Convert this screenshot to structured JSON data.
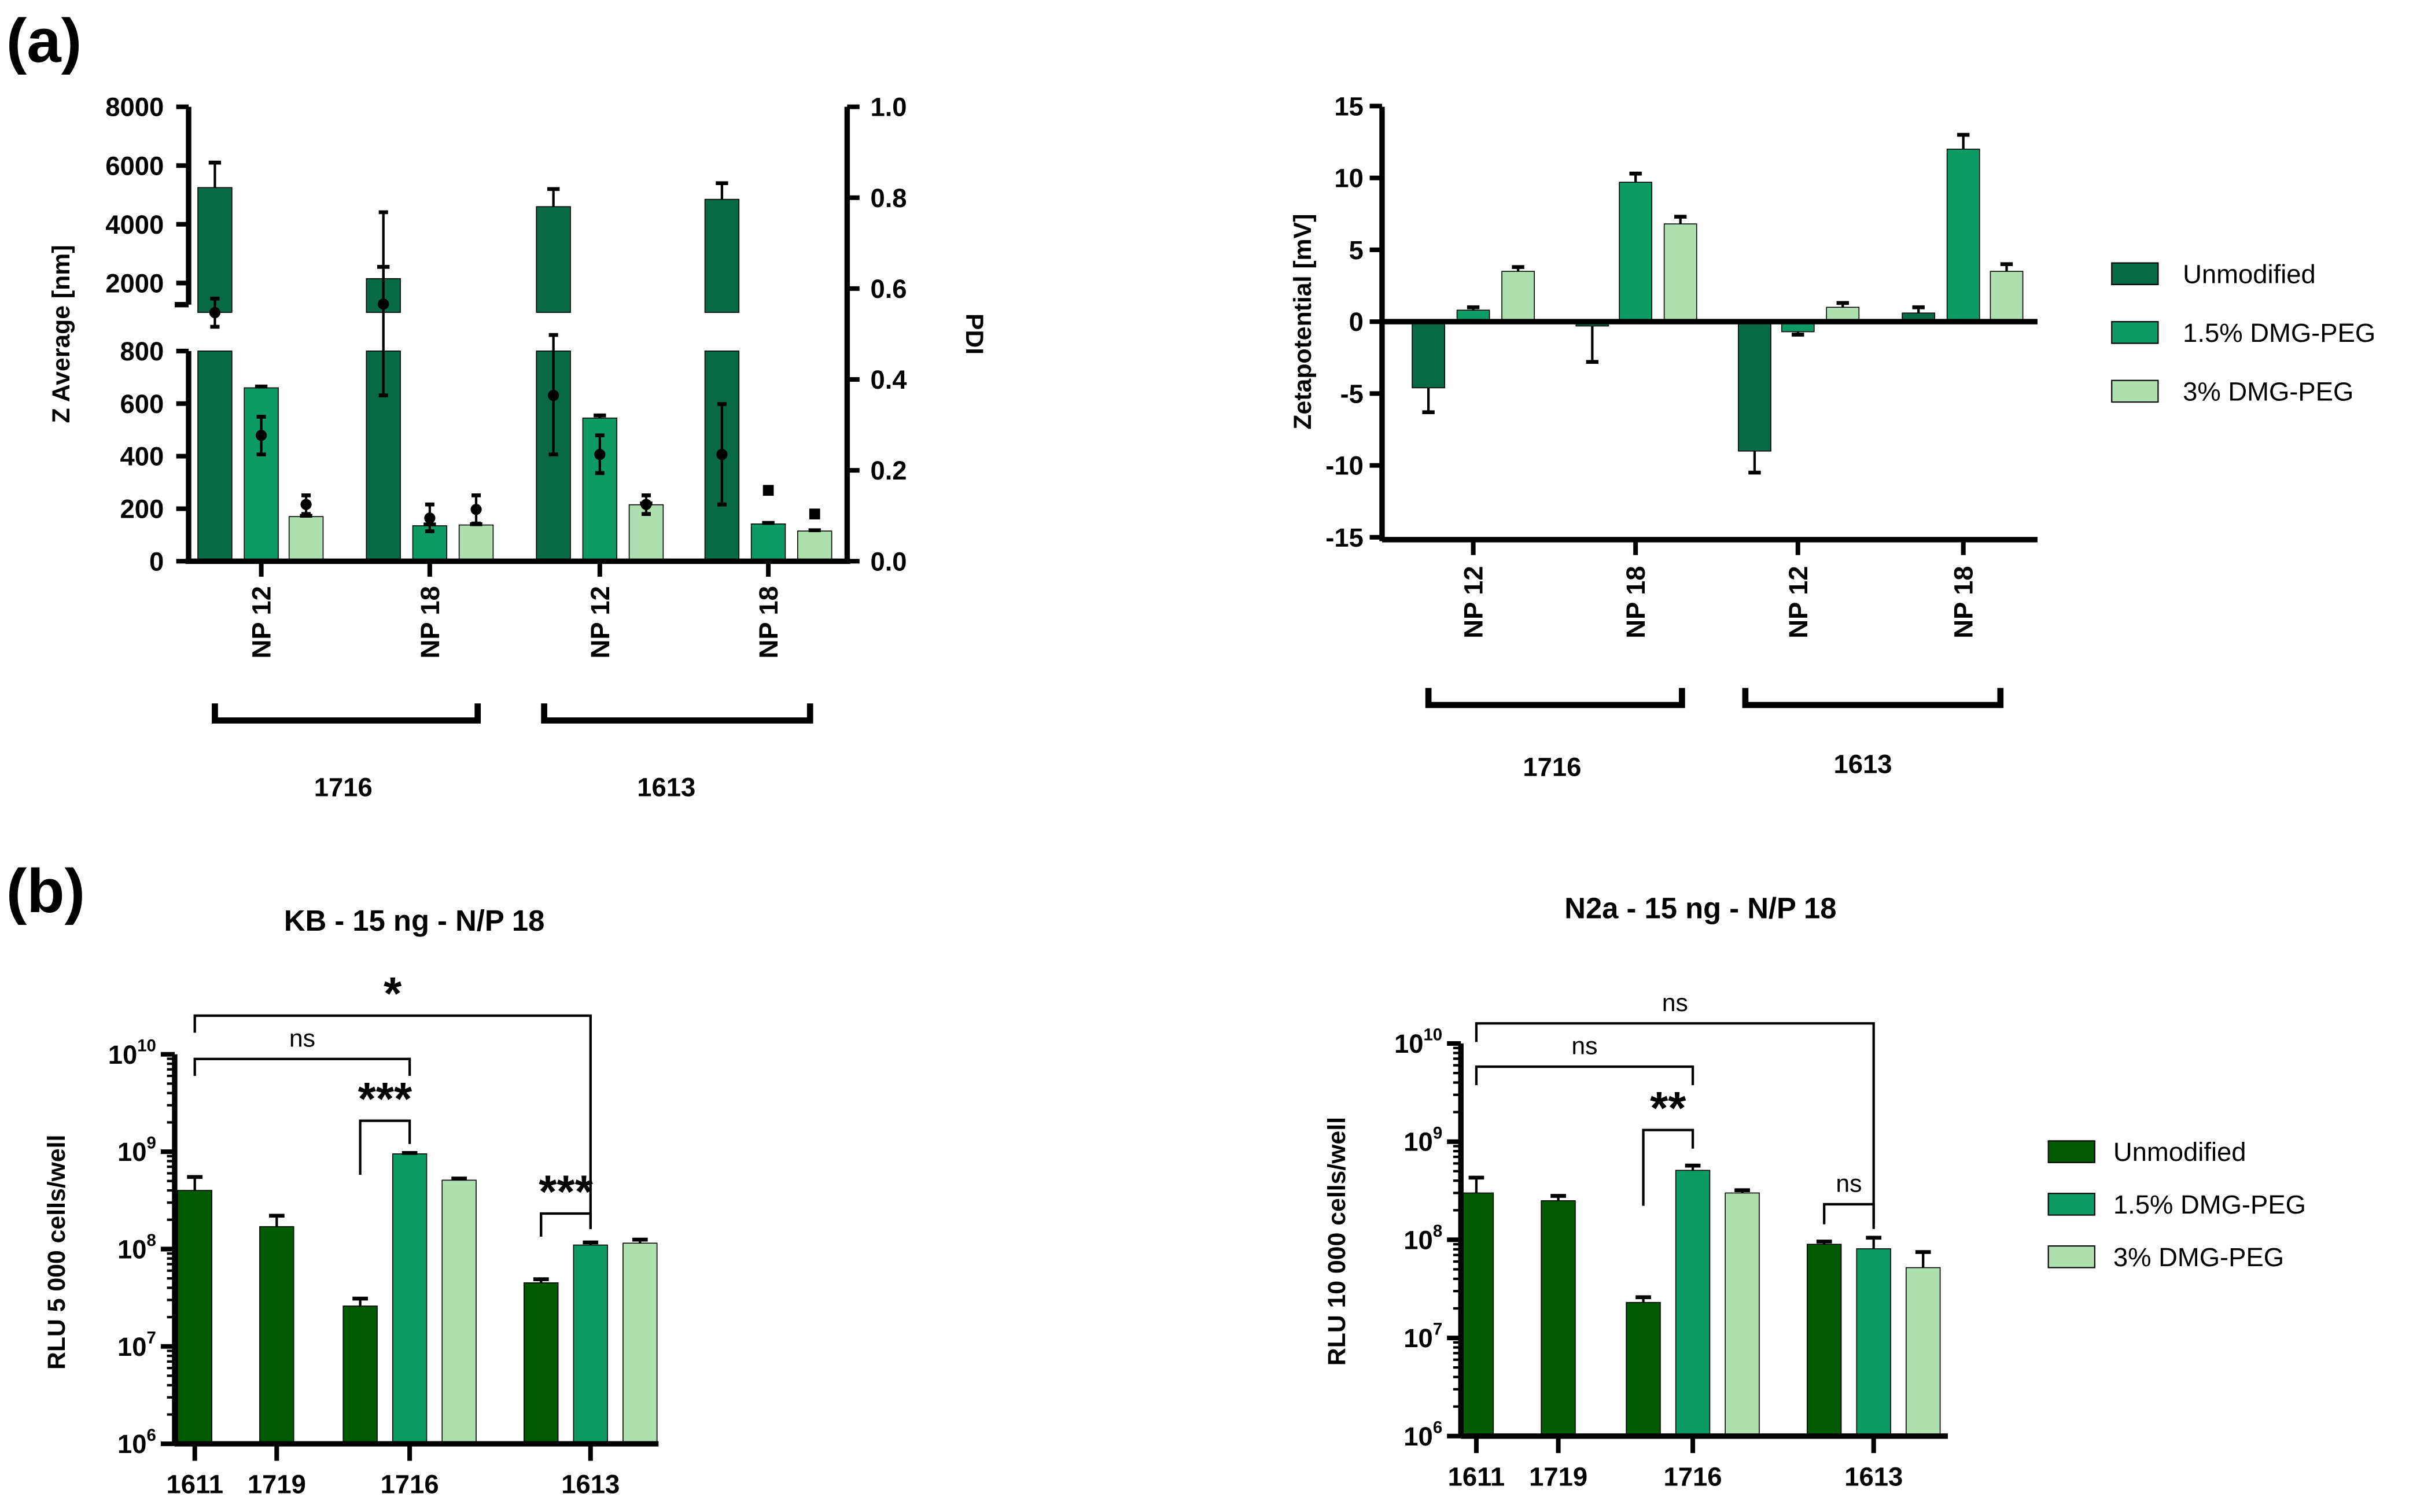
{
  "panel_labels": [
    "(a)",
    "(b)"
  ],
  "chart_data": [
    {
      "type": "bar",
      "title": "",
      "ylabel": "Z Average [nm]",
      "y2label": "PDI",
      "y_axis_broken": true,
      "y_segments": [
        {
          "range": [
            0,
            800
          ],
          "ticks": [
            "0",
            "200",
            "400",
            "600",
            "800"
          ],
          "tick_values": [
            0,
            200,
            400,
            600,
            800
          ]
        },
        {
          "range": [
            1000,
            8000
          ],
          "ticks": [
            "2000",
            "4000",
            "6000",
            "8000"
          ],
          "tick_values": [
            2000,
            4000,
            6000,
            8000
          ]
        }
      ],
      "y2lim": [
        0,
        1
      ],
      "y2ticks": [
        "0.0",
        "0.2",
        "0.4",
        "0.6",
        "0.8",
        "1.0"
      ],
      "y2tick_values": [
        0,
        0.2,
        0.4,
        0.6,
        0.8,
        1.0
      ],
      "categories": [
        "NP 12",
        "NP 18",
        "NP 12",
        "NP 18"
      ],
      "category_groups": [
        {
          "label": "1716",
          "span": [
            0,
            1
          ]
        },
        {
          "label": "1613",
          "span": [
            2,
            3
          ]
        }
      ],
      "series": [
        {
          "name": "Unmodified",
          "color": "#076a45",
          "values": [
            5250,
            2150,
            4600,
            4850
          ],
          "err_upper": [
            6100,
            2550,
            5200,
            5400
          ]
        },
        {
          "name": "1.5% DMG-PEG",
          "color": "#0c9b64",
          "values": [
            660,
            135,
            545,
            142
          ],
          "err_upper": [
            665,
            140,
            555,
            146
          ]
        },
        {
          "name": "3% DMG-PEG",
          "color": "#aedfae",
          "values": [
            170,
            138,
            215,
            115
          ],
          "err_upper": [
            173,
            141,
            220,
            118
          ]
        }
      ],
      "pdi": [
        {
          "name": "Unmodified",
          "mean": [
            0.547,
            0.566,
            0.365,
            0.235
          ],
          "lo": [
            0.516,
            0.365,
            0.235,
            0.125
          ],
          "hi": [
            0.578,
            0.768,
            0.498,
            0.346
          ]
        },
        {
          "name": "1.5% DMG-PEG",
          "mean": [
            0.277,
            0.095,
            0.235,
            0.156
          ],
          "lo": [
            0.235,
            0.066,
            0.194,
            null
          ],
          "hi": [
            0.318,
            0.125,
            0.277,
            null
          ]
        },
        {
          "name": "3% DMG-PEG",
          "mean": [
            0.125,
            0.114,
            0.125,
            0.104
          ],
          "lo": [
            0.104,
            0.083,
            0.104,
            null
          ],
          "hi": [
            0.145,
            0.145,
            0.145,
            null
          ]
        }
      ]
    },
    {
      "type": "bar",
      "title": "",
      "ylabel": "Zetapotential [mV]",
      "ylim": [
        -15,
        15
      ],
      "yticks": [
        "-15",
        "-10",
        "-5",
        "0",
        "5",
        "10",
        "15"
      ],
      "ytick_values": [
        -15,
        -10,
        -5,
        0,
        5,
        10,
        15
      ],
      "categories": [
        "NP 12",
        "NP 18",
        "NP 12",
        "NP 18"
      ],
      "category_groups": [
        {
          "label": "1716",
          "span": [
            0,
            1
          ]
        },
        {
          "label": "1613",
          "span": [
            2,
            3
          ]
        }
      ],
      "series": [
        {
          "name": "Unmodified",
          "color": "#076a45",
          "values": [
            -4.6,
            -0.3,
            -9.0,
            0.6
          ],
          "err_end": [
            -6.3,
            -2.8,
            -10.5,
            1.0
          ]
        },
        {
          "name": "1.5% DMG-PEG",
          "color": "#0c9b64",
          "values": [
            0.8,
            9.7,
            -0.7,
            12.0
          ],
          "err_end": [
            1.0,
            10.3,
            -0.9,
            13.0
          ]
        },
        {
          "name": "3% DMG-PEG",
          "color": "#aedfae",
          "values": [
            3.5,
            6.8,
            1.0,
            3.5
          ],
          "err_end": [
            3.8,
            7.3,
            1.3,
            4.0
          ]
        }
      ],
      "legend": [
        "Unmodified",
        "1.5% DMG-PEG",
        "3% DMG-PEG"
      ],
      "legend_position": "right"
    },
    {
      "type": "bar",
      "title": "KB - 15 ng - N/P 18",
      "ylabel": "RLU 5 000 cells/well",
      "yscale": "log",
      "ylim": [
        1000000.0,
        10000000000.0
      ],
      "yticks": [
        {
          "base": "10",
          "exp": "6"
        },
        {
          "base": "10",
          "exp": "7"
        },
        {
          "base": "10",
          "exp": "8"
        },
        {
          "base": "10",
          "exp": "9"
        },
        {
          "base": "10",
          "exp": "10"
        }
      ],
      "categories": [
        "1611",
        "1719",
        "1716",
        "1613"
      ],
      "series": [
        {
          "name": "Unmodified",
          "color": "#005a00",
          "values": [
            400000000.0,
            170000000.0,
            26000000.0,
            45000000.0
          ],
          "err_upper": [
            550000000.0,
            220000000.0,
            31000000.0,
            49000000.0
          ]
        },
        {
          "name": "1.5% DMG-PEG",
          "color": "#0c9b64",
          "values": [
            null,
            null,
            950000000.0,
            110000000.0
          ],
          "err_upper": [
            null,
            null,
            970000000.0,
            117000000.0
          ]
        },
        {
          "name": "3% DMG-PEG",
          "color": "#aedfae",
          "values": [
            null,
            null,
            510000000.0,
            115000000.0
          ],
          "err_upper": [
            null,
            null,
            530000000.0,
            125000000.0
          ]
        }
      ],
      "significance": [
        {
          "from": [
            0,
            0
          ],
          "to": [
            3,
            1
          ],
          "label": "*"
        },
        {
          "from": [
            0,
            0
          ],
          "to": [
            2,
            1
          ],
          "label": "ns"
        },
        {
          "from": [
            2,
            0
          ],
          "to": [
            2,
            1
          ],
          "label": "***"
        },
        {
          "from": [
            3,
            0
          ],
          "to": [
            3,
            1
          ],
          "label": "***"
        }
      ]
    },
    {
      "type": "bar",
      "title": "N2a - 15 ng - N/P 18",
      "ylabel": "RLU 10 000 cells/well",
      "yscale": "log",
      "ylim": [
        1000000.0,
        10000000000.0
      ],
      "yticks": [
        {
          "base": "10",
          "exp": "6"
        },
        {
          "base": "10",
          "exp": "7"
        },
        {
          "base": "10",
          "exp": "8"
        },
        {
          "base": "10",
          "exp": "9"
        },
        {
          "base": "10",
          "exp": "10"
        }
      ],
      "categories": [
        "1611",
        "1719",
        "1716",
        "1613"
      ],
      "series": [
        {
          "name": "Unmodified",
          "color": "#005a00",
          "values": [
            300000000.0,
            250000000.0,
            23000000.0,
            90000000.0
          ],
          "err_upper": [
            430000000.0,
            280000000.0,
            26000000.0,
            96000000.0
          ]
        },
        {
          "name": "1.5% DMG-PEG",
          "color": "#0c9b64",
          "values": [
            null,
            null,
            510000000.0,
            81000000.0
          ],
          "err_upper": [
            null,
            null,
            570000000.0,
            105000000.0
          ]
        },
        {
          "name": "3% DMG-PEG",
          "color": "#aedfae",
          "values": [
            null,
            null,
            300000000.0,
            52000000.0
          ],
          "err_upper": [
            null,
            null,
            320000000.0,
            75000000.0
          ]
        }
      ],
      "significance": [
        {
          "from": [
            0,
            0
          ],
          "to": [
            3,
            1
          ],
          "label": "ns"
        },
        {
          "from": [
            0,
            0
          ],
          "to": [
            2,
            1
          ],
          "label": "ns"
        },
        {
          "from": [
            2,
            0
          ],
          "to": [
            2,
            1
          ],
          "label": "**"
        },
        {
          "from": [
            3,
            0
          ],
          "to": [
            3,
            1
          ],
          "label": "ns"
        }
      ],
      "legend": [
        "Unmodified",
        "1.5% DMG-PEG",
        "3% DMG-PEG"
      ],
      "legend_position": "right"
    }
  ]
}
